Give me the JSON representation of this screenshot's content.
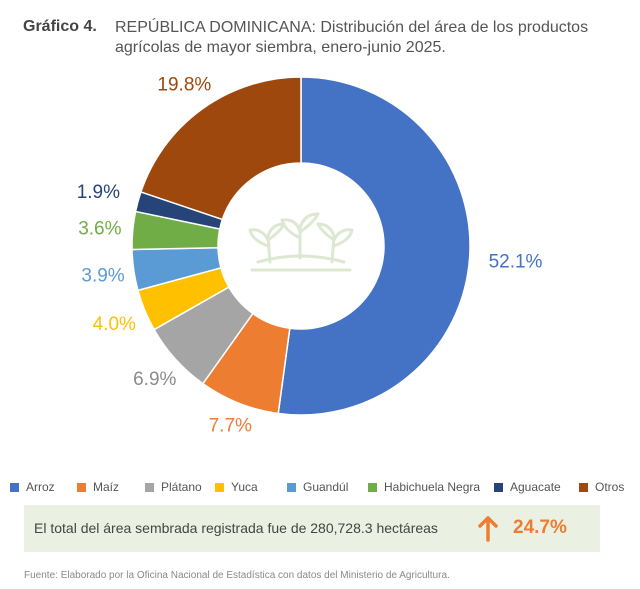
{
  "header": {
    "number": "Gráfico 4.",
    "text": "REPÚBLICA DOMINICANA: Distribución del área de los productos agrícolas de mayor siembra, enero-junio 2025."
  },
  "chart_data": {
    "type": "pie",
    "donut": true,
    "categories": [
      "Arroz",
      "Maíz",
      "Plátano",
      "Yuca",
      "Guandúl",
      "Habichuela Negra",
      "Aguacate",
      "Otros"
    ],
    "values": [
      52.1,
      7.7,
      6.9,
      4.0,
      3.9,
      3.6,
      1.9,
      19.8
    ],
    "labels": [
      "52.1%",
      "7.7%",
      "6.9%",
      "4.0%",
      "3.9%",
      "3.6%",
      "1.9%",
      "19.8%"
    ],
    "colors": [
      "#4472c4",
      "#ed7d31",
      "#a5a5a5",
      "#ffc000",
      "#5b9bd5",
      "#70ad47",
      "#264478",
      "#9e480e"
    ],
    "legend_position": "bottom",
    "center_icon": "plants-icon"
  },
  "summary": {
    "text": "El total del área sembrada registrada fue de 280,728.3 hectáreas",
    "arrow_icon": "arrow-up-icon",
    "change": "24.7%"
  },
  "footer": {
    "source": "Fuente: Elaborado por la Oficina Nacional de Estadística con datos del Ministerio de Agricultura."
  }
}
